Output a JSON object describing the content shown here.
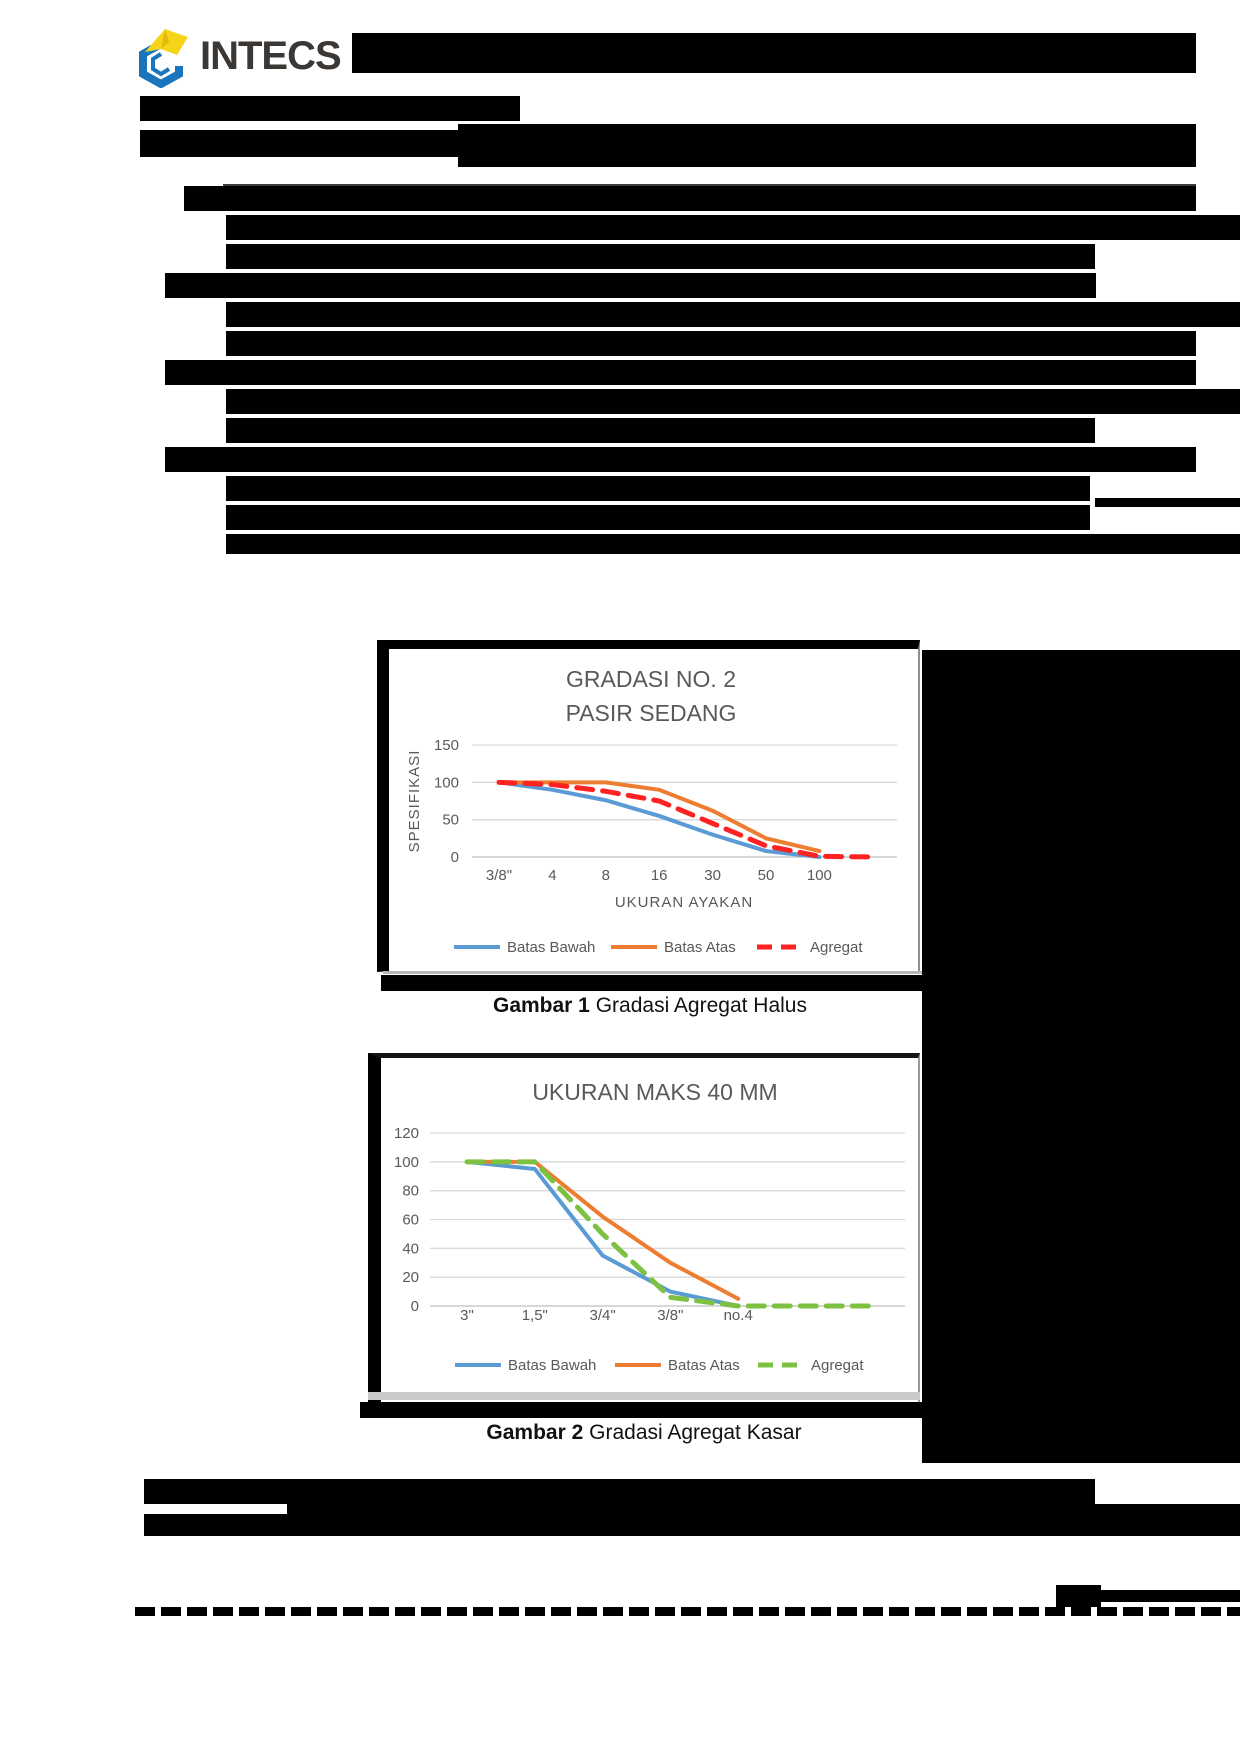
{
  "header": {
    "logo_text": "INTECS",
    "logo_colors": {
      "yellow": "#F6D41A",
      "blue": "#1B75BC"
    }
  },
  "figures": [
    {
      "caption_label": "Gambar  1",
      "caption_text": " Gradasi Agregat Halus"
    },
    {
      "caption_label": "Gambar  2",
      "caption_text": " Gradasi Agregat Kasar"
    }
  ],
  "chart_data": [
    {
      "type": "line",
      "title_lines": [
        "GRADASI NO. 2",
        "PASIR SEDANG"
      ],
      "ylabel": "SPESIFIKASI",
      "xlabel": "UKURAN AYAKAN",
      "categories": [
        "3/8\"",
        "4",
        "8",
        "16",
        "30",
        "50",
        "100",
        ""
      ],
      "ylim": [
        0,
        150
      ],
      "yticks": [
        0,
        50,
        100,
        150
      ],
      "grid": true,
      "legend_position": "bottom",
      "text_color": "#595959",
      "grid_color": "#D9D9D9",
      "series": [
        {
          "name": "Batas Bawah",
          "color": "#5B9BD5",
          "style": "solid",
          "values": [
            100,
            90,
            76,
            55,
            30,
            8,
            0
          ]
        },
        {
          "name": "Batas Atas",
          "color": "#ED7D31",
          "style": "solid",
          "values": [
            100,
            100,
            100,
            90,
            62,
            25,
            8
          ]
        },
        {
          "name": "Agregat",
          "color": "#FF2222",
          "style": "dashed",
          "values": [
            100,
            97,
            88,
            75,
            45,
            15,
            1,
            0
          ]
        }
      ]
    },
    {
      "type": "line",
      "title_lines": [
        "UKURAN MAKS 40 MM"
      ],
      "ylabel": "",
      "xlabel": "",
      "categories": [
        "3\"",
        "1,5\"",
        "3/4\"",
        "3/8\"",
        "no.4",
        "",
        ""
      ],
      "ylim": [
        0,
        120
      ],
      "yticks": [
        0,
        20,
        40,
        60,
        80,
        100,
        120
      ],
      "grid": true,
      "legend_position": "bottom",
      "text_color": "#595959",
      "grid_color": "#D9D9D9",
      "series": [
        {
          "name": "Batas Bawah",
          "color": "#5B9BD5",
          "style": "solid",
          "values": [
            100,
            95,
            35,
            10,
            0
          ]
        },
        {
          "name": "Batas Atas",
          "color": "#ED7D31",
          "style": "solid",
          "values": [
            100,
            100,
            62,
            30,
            5
          ]
        },
        {
          "name": "Agregat",
          "color": "#7CC142",
          "style": "dashed",
          "values": [
            100,
            100,
            50,
            6,
            0,
            0,
            0
          ]
        }
      ]
    }
  ]
}
